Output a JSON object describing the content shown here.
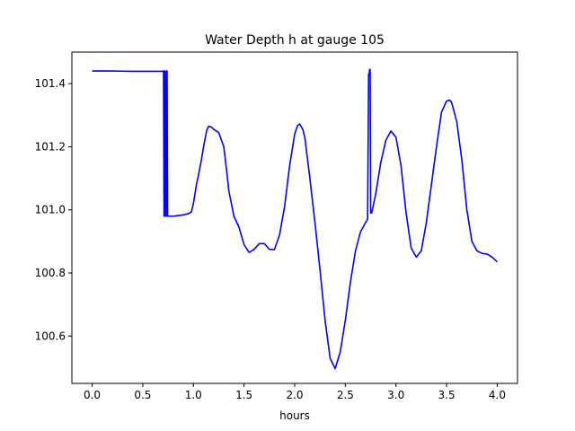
{
  "chart_data": {
    "type": "line",
    "title": "Water Depth h at gauge 105",
    "xlabel": "hours",
    "ylabel": "",
    "xlim": [
      -0.2,
      4.2
    ],
    "ylim": [
      100.45,
      101.5
    ],
    "xticks": [
      0.0,
      0.5,
      1.0,
      1.5,
      2.0,
      2.5,
      3.0,
      3.5,
      4.0
    ],
    "xtick_labels": [
      "0.0",
      "0.5",
      "1.0",
      "1.5",
      "2.0",
      "2.5",
      "3.0",
      "3.5",
      "4.0"
    ],
    "yticks": [
      100.6,
      100.8,
      101.0,
      101.2,
      101.4
    ],
    "ytick_labels": [
      "100.6",
      "100.8",
      "101.0",
      "101.2",
      "101.4"
    ],
    "grid": false,
    "legend": "none",
    "series": [
      {
        "color": "#0000ff",
        "x": [
          0.0,
          0.2,
          0.4,
          0.5,
          0.6,
          0.7,
          0.705,
          0.71,
          0.715,
          0.72,
          0.725,
          0.73,
          0.735,
          0.74,
          0.745,
          0.75,
          0.755,
          0.76,
          0.8,
          0.85,
          0.9,
          0.95,
          0.98,
          1.0,
          1.03,
          1.05,
          1.08,
          1.1,
          1.13,
          1.15,
          1.18,
          1.2,
          1.25,
          1.3,
          1.33,
          1.35,
          1.4,
          1.45,
          1.5,
          1.55,
          1.6,
          1.65,
          1.7,
          1.75,
          1.8,
          1.85,
          1.9,
          1.95,
          2.0,
          2.03,
          2.05,
          2.08,
          2.1,
          2.15,
          2.2,
          2.25,
          2.3,
          2.35,
          2.4,
          2.45,
          2.5,
          2.55,
          2.6,
          2.65,
          2.7,
          2.72,
          2.73,
          2.735,
          2.74,
          2.745,
          2.75,
          2.755,
          2.76,
          2.8,
          2.85,
          2.9,
          2.95,
          3.0,
          3.05,
          3.1,
          3.15,
          3.2,
          3.25,
          3.3,
          3.35,
          3.4,
          3.45,
          3.5,
          3.53,
          3.55,
          3.6,
          3.65,
          3.7,
          3.75,
          3.8,
          3.85,
          3.9,
          3.95,
          4.0
        ],
        "values": [
          101.44,
          101.44,
          101.439,
          101.439,
          101.439,
          101.439,
          101.44,
          100.98,
          101.44,
          101.44,
          100.98,
          100.98,
          101.44,
          101.44,
          100.98,
          100.98,
          100.98,
          100.98,
          100.98,
          100.982,
          100.984,
          100.988,
          100.993,
          101.02,
          101.08,
          101.11,
          101.16,
          101.2,
          101.25,
          101.265,
          101.262,
          101.255,
          101.245,
          101.2,
          101.12,
          101.06,
          100.98,
          100.945,
          100.89,
          100.865,
          100.875,
          100.893,
          100.893,
          100.875,
          100.874,
          100.92,
          101.01,
          101.14,
          101.24,
          101.268,
          101.272,
          101.255,
          101.23,
          101.1,
          100.96,
          100.81,
          100.65,
          100.53,
          100.497,
          100.55,
          100.65,
          100.77,
          100.87,
          100.93,
          100.96,
          100.97,
          101.43,
          101.43,
          101.445,
          101.445,
          100.99,
          100.99,
          100.99,
          101.05,
          101.15,
          101.22,
          101.25,
          101.23,
          101.14,
          100.99,
          100.88,
          100.85,
          100.87,
          100.96,
          101.08,
          101.2,
          101.31,
          101.345,
          101.348,
          101.34,
          101.28,
          101.16,
          101.0,
          100.9,
          100.87,
          100.862,
          100.86,
          100.85,
          100.835
        ]
      }
    ]
  }
}
